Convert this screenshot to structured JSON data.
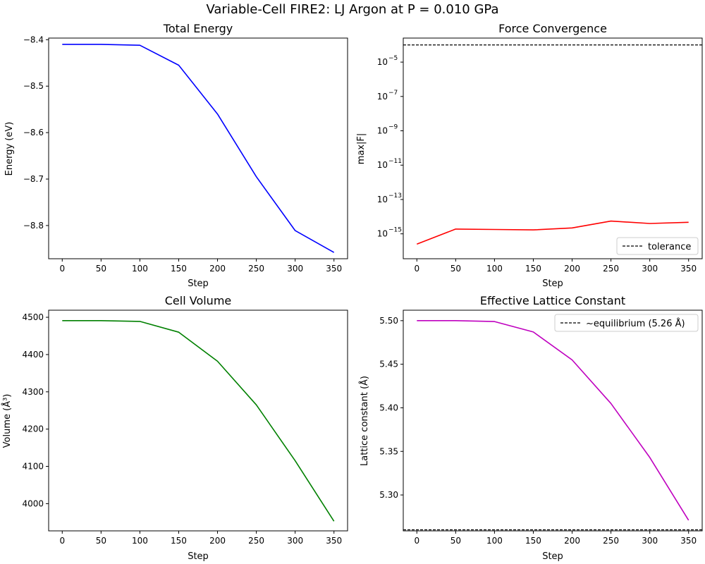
{
  "figure": {
    "suptitle": "Variable-Cell FIRE2: LJ Argon at P = 0.010 GPa"
  },
  "chart_data": [
    {
      "type": "line",
      "title": "Total Energy",
      "xlabel": "Step",
      "ylabel": "Energy (eV)",
      "xlim": [
        -17.5,
        367.5
      ],
      "ylim": [
        -8.8715,
        -8.3965
      ],
      "x_ticks": [
        0,
        50,
        100,
        150,
        200,
        250,
        300,
        350
      ],
      "y_ticks": [
        -8.8,
        -8.7,
        -8.6,
        -8.5,
        -8.4
      ],
      "y_tick_labels": [
        "−8.8",
        "−8.7",
        "−8.6",
        "−8.5",
        "−8.4"
      ],
      "x": [
        0,
        50,
        100,
        150,
        200,
        250,
        300,
        350
      ],
      "series": [
        {
          "color": "#0000ff",
          "values": [
            -8.41,
            -8.41,
            -8.412,
            -8.455,
            -8.56,
            -8.695,
            -8.811,
            -8.858
          ]
        }
      ],
      "grid": false
    },
    {
      "type": "line",
      "title": "Force Convergence",
      "xlabel": "Step",
      "ylabel": "max|F|",
      "yscale": "log",
      "xlim": [
        -17.5,
        367.5
      ],
      "ylim_log10": [
        -16.45,
        -3.6
      ],
      "x_ticks": [
        0,
        50,
        100,
        150,
        200,
        250,
        300,
        350
      ],
      "y_ticks_log10": [
        -15,
        -13,
        -11,
        -9,
        -7,
        -5
      ],
      "x": [
        0,
        50,
        100,
        150,
        200,
        250,
        300,
        350
      ],
      "series": [
        {
          "color": "#ff0000",
          "values": [
            2.5e-16,
            1.9e-15,
            1.8e-15,
            1.7e-15,
            2.2e-15,
            5.5e-15,
            4e-15,
            4.7e-15
          ]
        }
      ],
      "hline": {
        "value": 0.0001,
        "color": "#000000",
        "style": "dashed",
        "label": "tolerance"
      },
      "legend": {
        "position": "bottom-right"
      },
      "grid": false
    },
    {
      "type": "line",
      "title": "Cell Volume",
      "xlabel": "Step",
      "ylabel": "Volume (Å³)",
      "xlim": [
        -17.5,
        367.5
      ],
      "ylim": [
        3927,
        4519
      ],
      "x_ticks": [
        0,
        50,
        100,
        150,
        200,
        250,
        300,
        350
      ],
      "y_ticks": [
        4000,
        4100,
        4200,
        4300,
        4400,
        4500
      ],
      "x": [
        0,
        50,
        100,
        150,
        200,
        250,
        300,
        350
      ],
      "series": [
        {
          "color": "#008000",
          "values": [
            4491,
            4491,
            4489,
            4460,
            4382,
            4265,
            4115,
            3953
          ]
        }
      ],
      "grid": false
    },
    {
      "type": "line",
      "title": "Effective Lattice Constant",
      "xlabel": "Step",
      "ylabel": "Lattice constant (Å)",
      "xlim": [
        -17.5,
        367.5
      ],
      "ylim": [
        5.2588,
        5.512
      ],
      "x_ticks": [
        0,
        50,
        100,
        150,
        200,
        250,
        300,
        350
      ],
      "y_ticks": [
        5.3,
        5.35,
        5.4,
        5.45,
        5.5
      ],
      "y_tick_labels": [
        "5.30",
        "5.35",
        "5.40",
        "5.45",
        "5.50"
      ],
      "x": [
        0,
        50,
        100,
        150,
        200,
        250,
        300,
        350
      ],
      "series": [
        {
          "color": "#bf00bf",
          "values": [
            5.5,
            5.5,
            5.499,
            5.487,
            5.455,
            5.405,
            5.343,
            5.271
          ]
        }
      ],
      "hline": {
        "value": 5.26,
        "color": "#000000",
        "style": "dashed",
        "label": "~equilibrium (5.26 Å)"
      },
      "legend": {
        "position": "top-right"
      },
      "grid": false
    }
  ]
}
